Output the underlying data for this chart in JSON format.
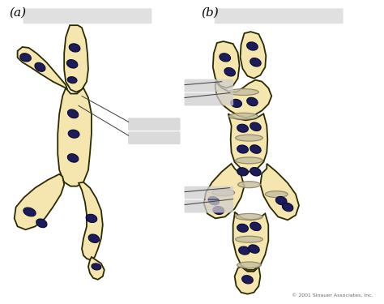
{
  "background_color": "#ffffff",
  "hypha_fill": "#F5E6B0",
  "hypha_edge": "#2a2a00",
  "nucleus_fill": "#1c1c5a",
  "nucleus_edge": "#0a0a30",
  "septa_fill": "#c8c0a0",
  "septa_edge": "#888060",
  "label_box_color": "#d0cece",
  "label_a": "(a)",
  "label_b": "(b)",
  "copyright": "© 2001 Sinauer Associates, Inc.",
  "fig_width": 4.74,
  "fig_height": 3.75,
  "dpi": 100
}
